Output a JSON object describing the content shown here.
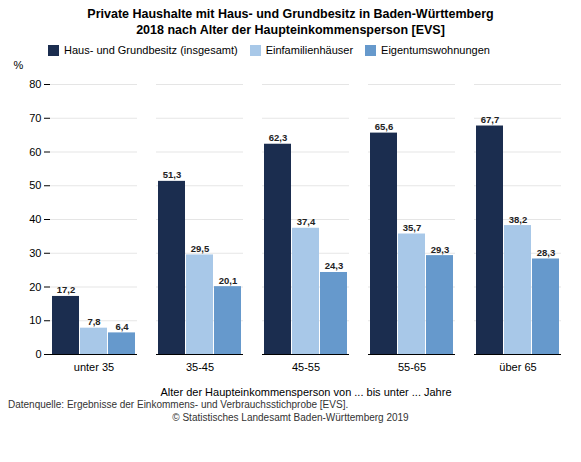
{
  "chart_data": {
    "type": "bar",
    "title": "Private Haushalte mit Haus- und Grundbesitz in Baden-Württemberg",
    "subtitle": "2018 nach Alter der Haupteinkommensperson [EVS]",
    "xlabel": "Alter der Haupteinkommensperson von ... bis unter ... Jahre",
    "ylabel": "%",
    "categories": [
      "unter 35",
      "35-45",
      "45-55",
      "55-65",
      "über 65"
    ],
    "series": [
      {
        "name": "Haus- und Grundbesitz (insgesamt)",
        "color": "#1b2d4f",
        "values": [
          17.2,
          51.3,
          62.3,
          65.6,
          67.7
        ],
        "value_labels": [
          "17,2",
          "51,3",
          "62,3",
          "65,6",
          "67,7"
        ]
      },
      {
        "name": "Einfamilienhäuser",
        "color": "#a8c8e8",
        "values": [
          7.8,
          29.5,
          37.4,
          35.7,
          38.2
        ],
        "value_labels": [
          "7,8",
          "29,5",
          "37,4",
          "35,7",
          "38,2"
        ]
      },
      {
        "name": "Eigentumswohnungen",
        "color": "#6699cc",
        "values": [
          6.4,
          20.1,
          24.3,
          29.3,
          28.3
        ],
        "value_labels": [
          "6,4",
          "20,1",
          "24,3",
          "29,3",
          "28,3"
        ]
      }
    ],
    "ylim": [
      0,
      80
    ],
    "yticks": [
      0,
      10,
      20,
      30,
      40,
      50,
      60,
      70,
      80
    ],
    "grid": true,
    "legend": "upper left",
    "data_labels": true,
    "footnotes": [
      "Datenquelle: Ergebnisse der Einkommens- und Verbrauchsstichprobe [EVS].",
      "© Statistisches Landesamt Baden-Württemberg 2019"
    ]
  }
}
